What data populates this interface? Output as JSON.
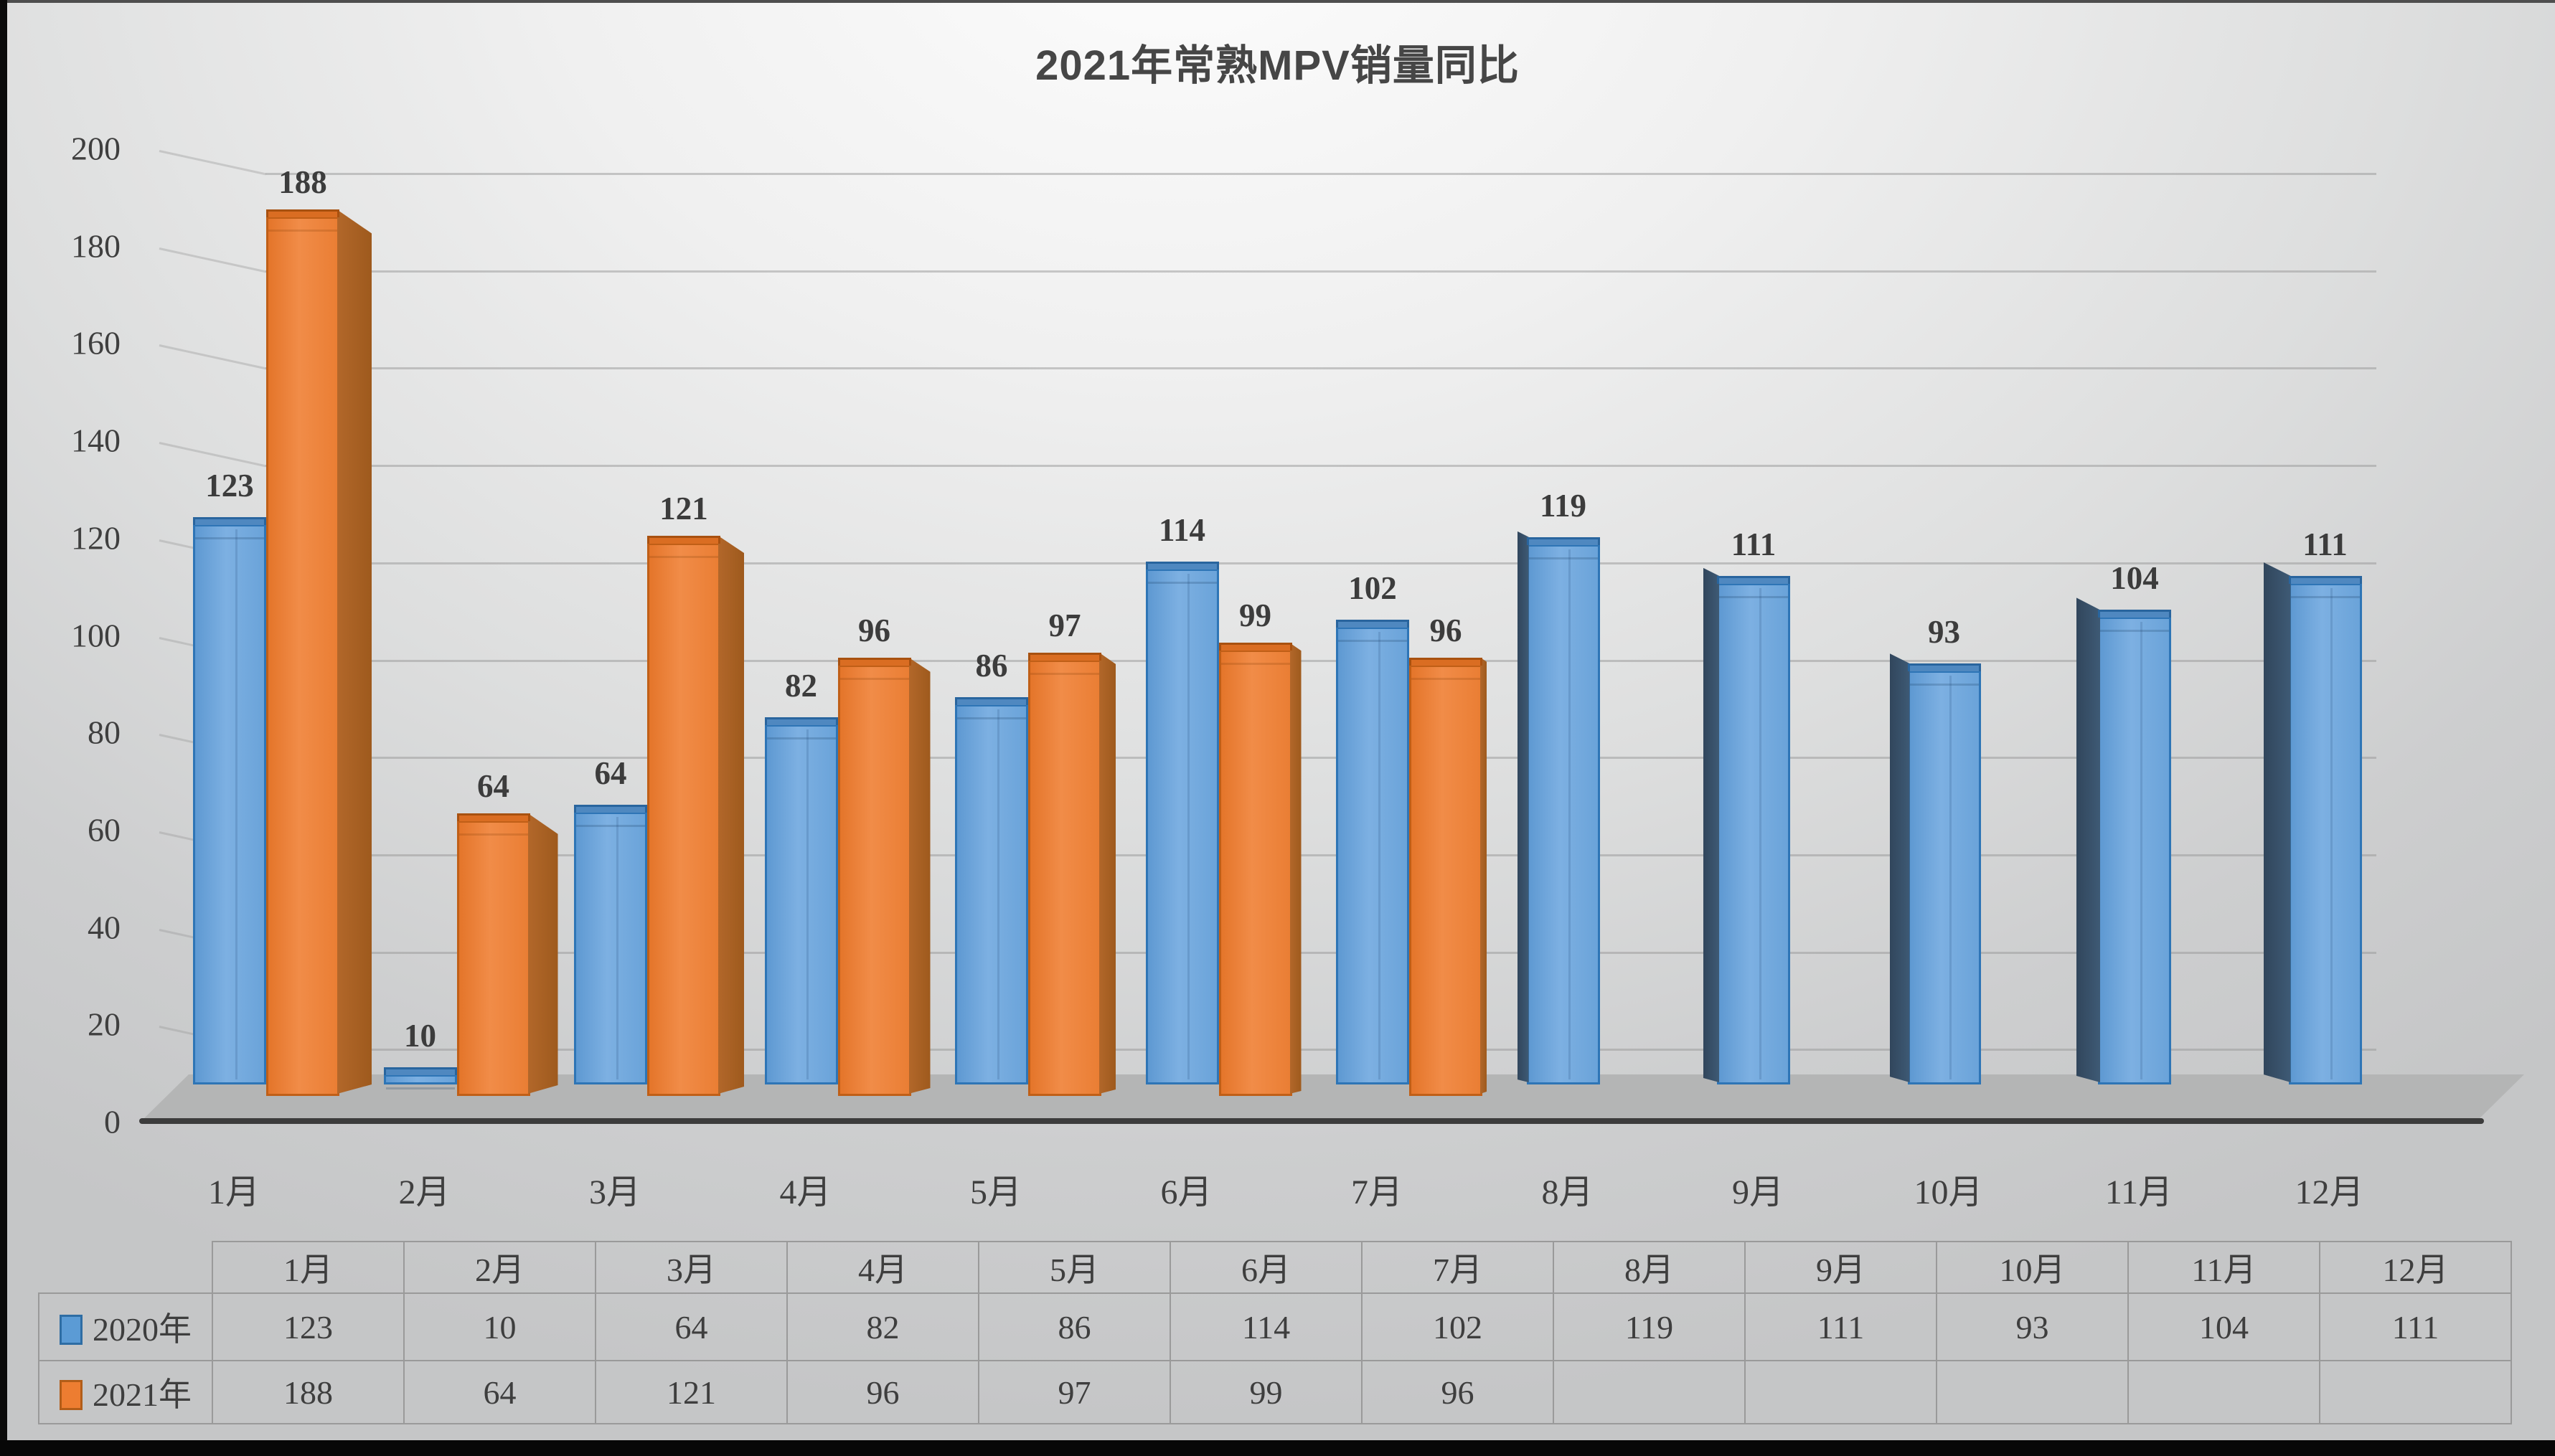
{
  "title": "2021年常熟MPV销量同比",
  "chart_data": {
    "type": "bar",
    "variant": "3d-clustered-column",
    "title": "2021年常熟MPV销量同比",
    "categories": [
      "1月",
      "2月",
      "3月",
      "4月",
      "5月",
      "6月",
      "7月",
      "8月",
      "9月",
      "10月",
      "11月",
      "12月"
    ],
    "series": [
      {
        "name": "2020年",
        "color": "#5B9BD5",
        "border_color": "#2E75B6",
        "values": [
          123,
          10,
          64,
          82,
          86,
          114,
          102,
          119,
          111,
          93,
          104,
          111
        ]
      },
      {
        "name": "2021年",
        "color": "#ED7D31",
        "border_color": "#C55A11",
        "values": [
          188,
          64,
          121,
          96,
          97,
          99,
          96,
          null,
          null,
          null,
          null,
          null
        ]
      }
    ],
    "xlabel": "",
    "ylabel": "",
    "ylim": [
      0,
      200
    ],
    "yticks": [
      0,
      20,
      40,
      60,
      80,
      100,
      120,
      140,
      160,
      180,
      200
    ],
    "grid": true,
    "data_labels": true,
    "legend_position": "table-left"
  },
  "table": {
    "corner_label": "",
    "col_headers": [
      "1月",
      "2月",
      "3月",
      "4月",
      "5月",
      "6月",
      "7月",
      "8月",
      "9月",
      "10月",
      "11月",
      "12月"
    ],
    "rows": [
      {
        "label": "2020年",
        "swatch_color": "#5B9BD5",
        "swatch_border": "#2E6DA4",
        "values": [
          "123",
          "10",
          "64",
          "82",
          "86",
          "114",
          "102",
          "119",
          "111",
          "93",
          "104",
          "111"
        ]
      },
      {
        "label": "2021年",
        "swatch_color": "#ED7D31",
        "swatch_border": "#B25D18",
        "values": [
          "188",
          "64",
          "121",
          "96",
          "97",
          "99",
          "96",
          "",
          "",
          "",
          "",
          ""
        ]
      }
    ]
  }
}
